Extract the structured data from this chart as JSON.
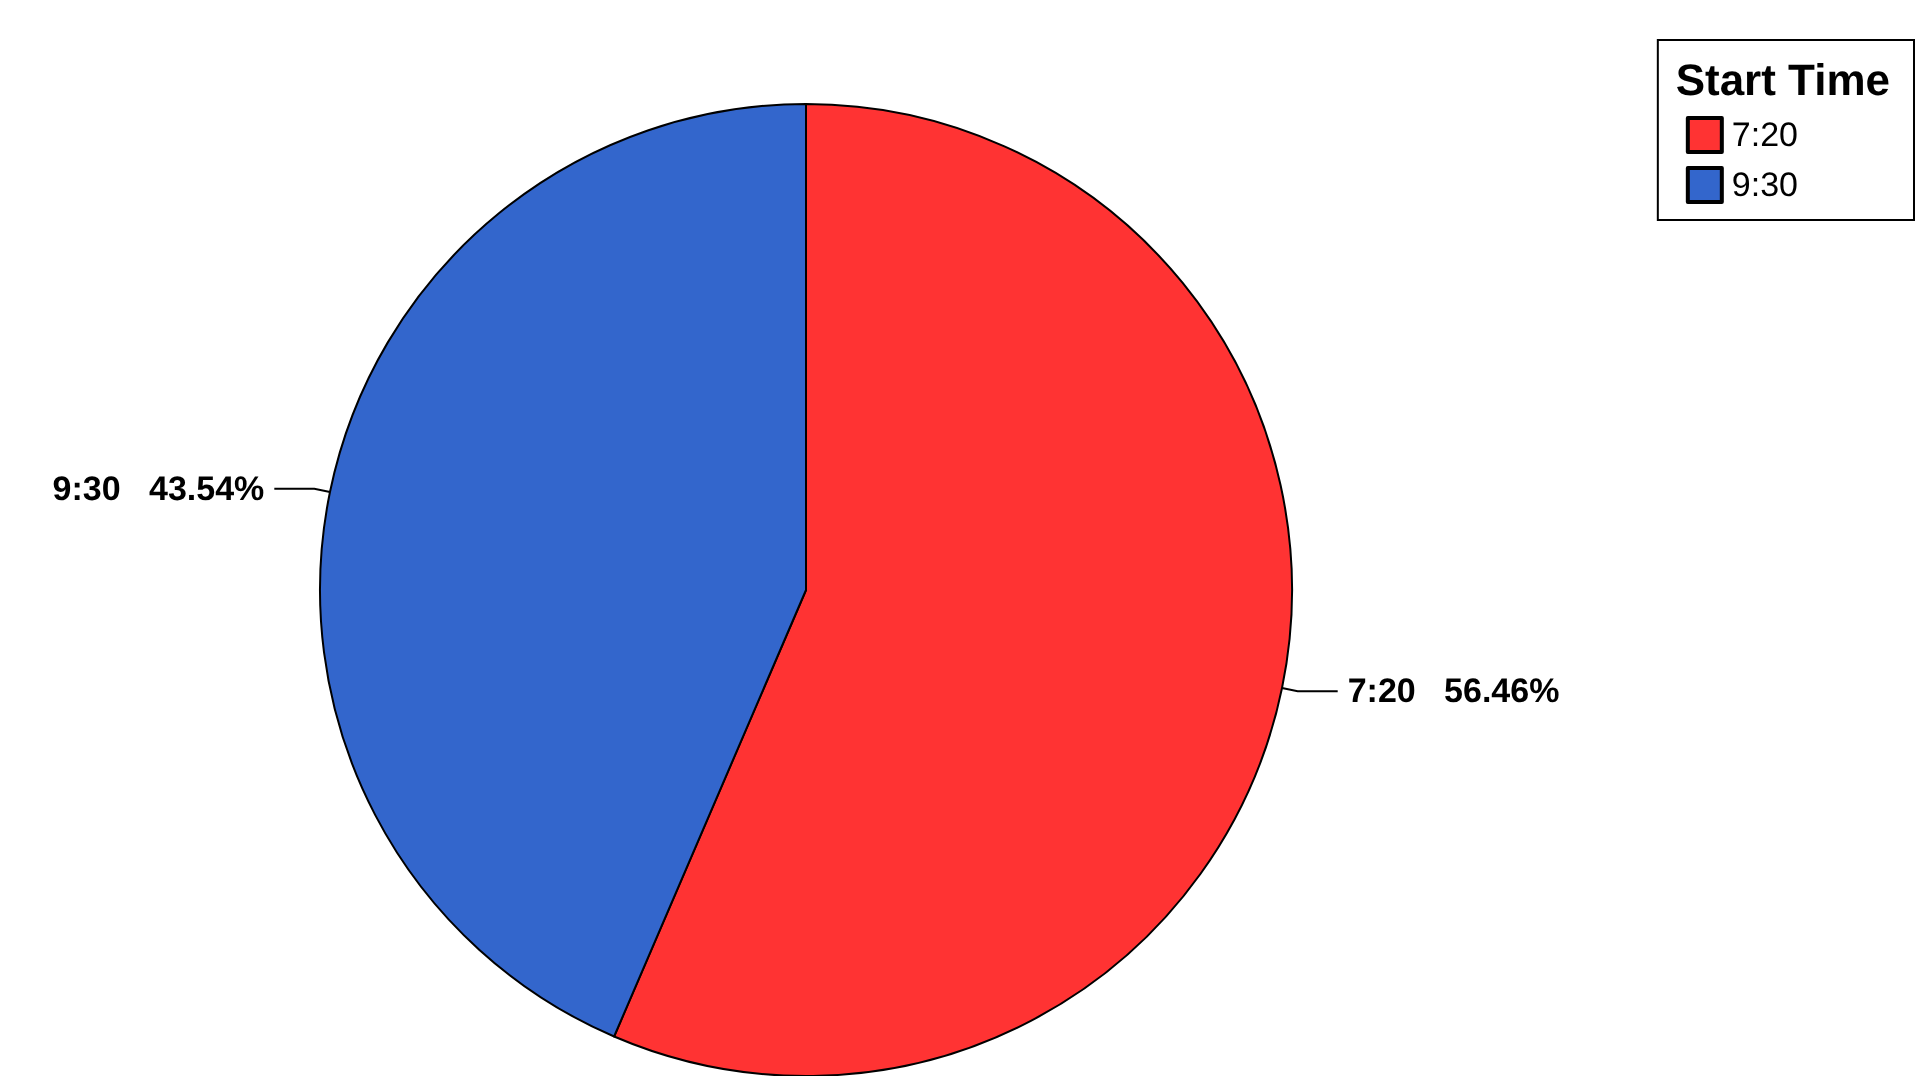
{
  "chart_data": {
    "type": "pie",
    "legend_title": "Start Time",
    "categories": [
      "7:20",
      "9:30"
    ],
    "values": [
      56.46,
      43.54
    ],
    "colors": [
      "#ff3333",
      "#3366cc"
    ],
    "value_labels": [
      "56.46%",
      "43.54%"
    ],
    "legend": "top right"
  }
}
